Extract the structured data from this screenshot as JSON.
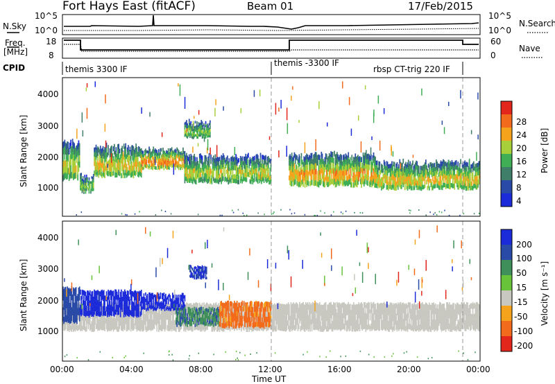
{
  "header": {
    "station": "Fort Hays East (fitACF)",
    "beam": "Beam 01",
    "date": "17/Feb/2015"
  },
  "summary_panels": {
    "nsky": {
      "left_label": "N.Sky",
      "right_label": "N.Search",
      "left_ticks": [
        "10^5",
        "10^0"
      ],
      "right_ticks": [
        "10^5",
        "10^0"
      ]
    },
    "freq": {
      "left_label_line1": "Freq.",
      "left_label_line2": "[MHz]",
      "right_label": "Nave",
      "left_ticks": [
        "18",
        "8"
      ],
      "right_ticks": [
        "60",
        "0"
      ]
    },
    "cpid": {
      "label": "CPID",
      "programs": [
        {
          "name": "themis 3300 IF",
          "start_hour": 0
        },
        {
          "name": "themis -3300 IF",
          "start_hour": 12
        },
        {
          "name": "rbsp CT-trig 220 IF",
          "start_hour": 23
        }
      ],
      "program_labels": [
        "themis 3300 IF",
        "themis -3300 IF",
        "rbsp CT-trig 220 IF"
      ]
    }
  },
  "power_panel": {
    "ylabel": "Slant Range [km]",
    "yticks": [
      "1000",
      "2000",
      "3000",
      "4000"
    ],
    "colorbar_title": "Power [dB]",
    "colorbar_ticks": [
      "4",
      "8",
      "12",
      "16",
      "20",
      "24",
      "28"
    ]
  },
  "velocity_panel": {
    "ylabel": "Slant Range [km]",
    "yticks": [
      "1000",
      "2000",
      "3000",
      "4000"
    ],
    "colorbar_title": "Velocity [m s⁻¹]",
    "colorbar_ticks": [
      "200",
      "100",
      "50",
      "15",
      "-15",
      "-50",
      "-100",
      "-200"
    ]
  },
  "xaxis": {
    "ticks": [
      "00:00",
      "04:00",
      "08:00",
      "12:00",
      "16:00",
      "20:00",
      "00:00"
    ],
    "label": "Time UT"
  },
  "colors": {
    "power_scale": [
      "#1c2bd9",
      "#2a4aa8",
      "#3f7f6a",
      "#3fae55",
      "#a7cf3a",
      "#f5a21c",
      "#f26a1b",
      "#e3261c"
    ],
    "velocity_scale": [
      "#1c2bd9",
      "#2a4aa8",
      "#3f8f5a",
      "#68c23a",
      "#c8c8c0",
      "#f5a21c",
      "#f26a1b",
      "#e3261c"
    ],
    "ground_scatter": "#c8c8c0"
  },
  "chart_data": [
    {
      "type": "heatmap",
      "title": "Power",
      "xlabel": "Time UT",
      "ylabel": "Slant Range [km]",
      "x_range_hours": [
        0,
        24
      ],
      "ylim": [
        180,
        4600
      ],
      "colorbar_range_dB": [
        0,
        32
      ],
      "echo_bands": [
        {
          "start_hour": 0.0,
          "end_hour": 1.0,
          "lower_km": 1350,
          "upper_km": 2550,
          "peak_dB": 20
        },
        {
          "start_hour": 1.0,
          "end_hour": 1.8,
          "lower_km": 950,
          "upper_km": 1450,
          "peak_dB": 18
        },
        {
          "start_hour": 1.8,
          "end_hour": 4.5,
          "lower_km": 1450,
          "upper_km": 2400,
          "peak_dB": 22
        },
        {
          "start_hour": 4.5,
          "end_hour": 7.0,
          "lower_km": 1700,
          "upper_km": 2300,
          "peak_dB": 26
        },
        {
          "start_hour": 7.0,
          "end_hour": 8.5,
          "lower_km": 2700,
          "upper_km": 3200,
          "peak_dB": 18
        },
        {
          "start_hour": 7.0,
          "end_hour": 12.0,
          "lower_km": 1250,
          "upper_km": 2100,
          "peak_dB": 20
        },
        {
          "start_hour": 13.0,
          "end_hour": 18.0,
          "lower_km": 1150,
          "upper_km": 2150,
          "peak_dB": 24
        },
        {
          "start_hour": 18.0,
          "end_hour": 24.0,
          "lower_km": 1050,
          "upper_km": 1900,
          "peak_dB": 22
        }
      ]
    },
    {
      "type": "heatmap",
      "title": "Velocity",
      "xlabel": "Time UT",
      "ylabel": "Slant Range [km]",
      "x_range_hours": [
        0,
        24
      ],
      "ylim": [
        180,
        4600
      ],
      "colorbar_range_ms": [
        -200,
        200
      ],
      "echo_bands": [
        {
          "start_hour": 0.0,
          "end_hour": 1.0,
          "lower_km": 1400,
          "upper_km": 2500,
          "velocity_ms": 120
        },
        {
          "start_hour": 1.0,
          "end_hour": 4.5,
          "lower_km": 1600,
          "upper_km": 2400,
          "velocity_ms": 180
        },
        {
          "start_hour": 4.5,
          "end_hour": 7.0,
          "lower_km": 1800,
          "upper_km": 2300,
          "velocity_ms": 200
        },
        {
          "start_hour": 7.3,
          "end_hour": 8.3,
          "lower_km": 2800,
          "upper_km": 3200,
          "velocity_ms": 150
        },
        {
          "start_hour": 6.5,
          "end_hour": 9.0,
          "lower_km": 1300,
          "upper_km": 1850,
          "velocity_ms": 60
        },
        {
          "start_hour": 9.0,
          "end_hour": 12.0,
          "lower_km": 1250,
          "upper_km": 2050,
          "velocity_ms": -70
        },
        {
          "start_hour": 0.0,
          "end_hour": 24.0,
          "lower_km": 1150,
          "upper_km": 2000,
          "velocity_ms": 0,
          "ground_scatter": true
        }
      ]
    }
  ]
}
